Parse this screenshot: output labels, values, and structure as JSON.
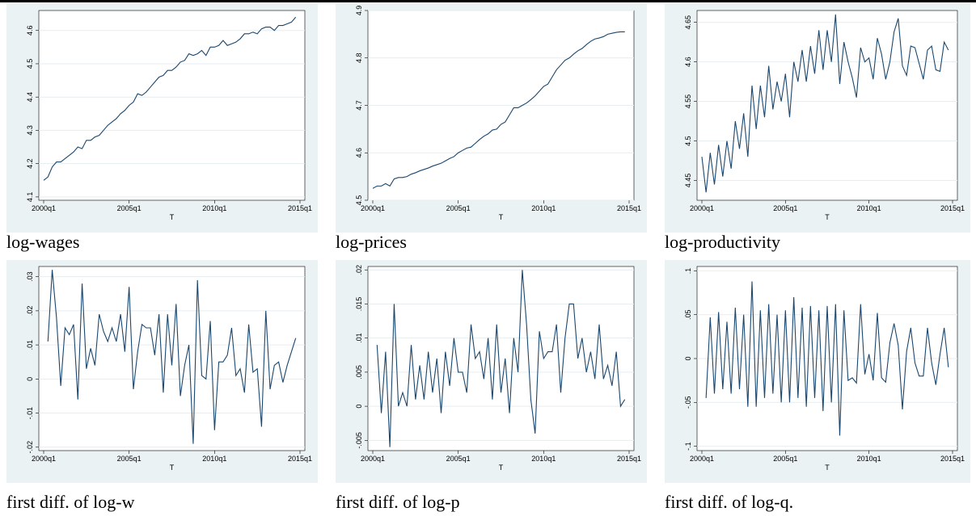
{
  "chart_data": [
    {
      "type": "line",
      "title": "log-wages",
      "xlabel": "T",
      "color": "#1a476f",
      "grid": true,
      "x": [
        "2000q1",
        "2000q2",
        "2000q3",
        "2000q4",
        "2001q1",
        "2001q2",
        "2001q3",
        "2001q4",
        "2002q1",
        "2002q2",
        "2002q3",
        "2002q4",
        "2003q1",
        "2003q2",
        "2003q3",
        "2003q4",
        "2004q1",
        "2004q2",
        "2004q3",
        "2004q4",
        "2005q1",
        "2005q2",
        "2005q3",
        "2005q4",
        "2006q1",
        "2006q2",
        "2006q3",
        "2006q4",
        "2007q1",
        "2007q2",
        "2007q3",
        "2007q4",
        "2008q1",
        "2008q2",
        "2008q3",
        "2008q4",
        "2009q1",
        "2009q2",
        "2009q3",
        "2009q4",
        "2010q1",
        "2010q2",
        "2010q3",
        "2010q4",
        "2011q1",
        "2011q2",
        "2011q3",
        "2011q4",
        "2012q1",
        "2012q2",
        "2012q3",
        "2012q4",
        "2013q1",
        "2013q2",
        "2013q3",
        "2013q4",
        "2014q1",
        "2014q2",
        "2014q3",
        "2014q4"
      ],
      "values": [
        4.15,
        4.16,
        4.19,
        4.205,
        4.205,
        4.215,
        4.225,
        4.235,
        4.25,
        4.245,
        4.27,
        4.27,
        4.28,
        4.285,
        4.3,
        4.315,
        4.325,
        4.335,
        4.35,
        4.36,
        4.375,
        4.385,
        4.41,
        4.405,
        4.415,
        4.43,
        4.445,
        4.46,
        4.465,
        4.48,
        4.48,
        4.49,
        4.505,
        4.51,
        4.53,
        4.525,
        4.53,
        4.54,
        4.525,
        4.55,
        4.55,
        4.555,
        4.57,
        4.555,
        4.56,
        4.565,
        4.575,
        4.59,
        4.59,
        4.595,
        4.59,
        4.605,
        4.61,
        4.61,
        4.6,
        4.615,
        4.615,
        4.62,
        4.625,
        4.64
      ],
      "xticks": [
        "2000q1",
        "2005q1",
        "2010q1",
        "2015q1"
      ],
      "ylim": [
        4.09,
        4.66
      ],
      "yticks": [
        4.1,
        4.2,
        4.3,
        4.4,
        4.5,
        4.6
      ]
    },
    {
      "type": "line",
      "title": "log-prices",
      "xlabel": "T",
      "color": "#1a476f",
      "grid": true,
      "x": [
        "2000q1",
        "2000q2",
        "2000q3",
        "2000q4",
        "2001q1",
        "2001q2",
        "2001q3",
        "2001q4",
        "2002q1",
        "2002q2",
        "2002q3",
        "2002q4",
        "2003q1",
        "2003q2",
        "2003q3",
        "2003q4",
        "2004q1",
        "2004q2",
        "2004q3",
        "2004q4",
        "2005q1",
        "2005q2",
        "2005q3",
        "2005q4",
        "2006q1",
        "2006q2",
        "2006q3",
        "2006q4",
        "2007q1",
        "2007q2",
        "2007q3",
        "2007q4",
        "2008q1",
        "2008q2",
        "2008q3",
        "2008q4",
        "2009q1",
        "2009q2",
        "2009q3",
        "2009q4",
        "2010q1",
        "2010q2",
        "2010q3",
        "2010q4",
        "2011q1",
        "2011q2",
        "2011q3",
        "2011q4",
        "2012q1",
        "2012q2",
        "2012q3",
        "2012q4",
        "2013q1",
        "2013q2",
        "2013q3",
        "2013q4",
        "2014q1",
        "2014q2",
        "2014q3",
        "2014q4"
      ],
      "values": [
        4.525,
        4.53,
        4.53,
        4.535,
        4.53,
        4.545,
        4.548,
        4.548,
        4.55,
        4.555,
        4.558,
        4.562,
        4.565,
        4.568,
        4.572,
        4.575,
        4.578,
        4.583,
        4.588,
        4.592,
        4.6,
        4.605,
        4.61,
        4.612,
        4.62,
        4.628,
        4.635,
        4.64,
        4.648,
        4.65,
        4.66,
        4.665,
        4.68,
        4.695,
        4.695,
        4.7,
        4.705,
        4.712,
        4.72,
        4.73,
        4.74,
        4.745,
        4.76,
        4.775,
        4.785,
        4.795,
        4.8,
        4.808,
        4.815,
        4.82,
        4.828,
        4.835,
        4.84,
        4.842,
        4.845,
        4.85,
        4.852,
        4.854,
        4.855,
        4.855
      ],
      "xticks": [
        "2000q1",
        "2005q1",
        "2010q1",
        "2015q1"
      ],
      "ylim": [
        4.5,
        4.9
      ],
      "yticks": [
        4.5,
        4.6,
        4.7,
        4.8,
        4.9
      ]
    },
    {
      "type": "line",
      "title": "log-productivity",
      "xlabel": "T",
      "color": "#1a476f",
      "grid": true,
      "x": [
        "2000q1",
        "2000q2",
        "2000q3",
        "2000q4",
        "2001q1",
        "2001q2",
        "2001q3",
        "2001q4",
        "2002q1",
        "2002q2",
        "2002q3",
        "2002q4",
        "2003q1",
        "2003q2",
        "2003q3",
        "2003q4",
        "2004q1",
        "2004q2",
        "2004q3",
        "2004q4",
        "2005q1",
        "2005q2",
        "2005q3",
        "2005q4",
        "2006q1",
        "2006q2",
        "2006q3",
        "2006q4",
        "2007q1",
        "2007q2",
        "2007q3",
        "2007q4",
        "2008q1",
        "2008q2",
        "2008q3",
        "2008q4",
        "2009q1",
        "2009q2",
        "2009q3",
        "2009q4",
        "2010q1",
        "2010q2",
        "2010q3",
        "2010q4",
        "2011q1",
        "2011q2",
        "2011q3",
        "2011q4",
        "2012q1",
        "2012q2",
        "2012q3",
        "2012q4",
        "2013q1",
        "2013q2",
        "2013q3",
        "2013q4",
        "2014q1",
        "2014q2",
        "2014q3",
        "2014q4"
      ],
      "values": [
        4.48,
        4.435,
        4.485,
        4.445,
        4.495,
        4.455,
        4.5,
        4.465,
        4.525,
        4.49,
        4.535,
        4.48,
        4.57,
        4.515,
        4.57,
        4.53,
        4.595,
        4.54,
        4.575,
        4.55,
        4.585,
        4.53,
        4.6,
        4.575,
        4.615,
        4.575,
        4.62,
        4.585,
        4.64,
        4.59,
        4.64,
        4.6,
        4.66,
        4.572,
        4.625,
        4.6,
        4.58,
        4.555,
        4.618,
        4.6,
        4.605,
        4.578,
        4.63,
        4.61,
        4.578,
        4.6,
        4.638,
        4.655,
        4.595,
        4.583,
        4.62,
        4.618,
        4.598,
        4.578,
        4.615,
        4.62,
        4.59,
        4.588,
        4.625,
        4.615
      ],
      "xticks": [
        "2000q1",
        "2005q1",
        "2010q1",
        "2015q1"
      ],
      "ylim": [
        4.425,
        4.665
      ],
      "yticks": [
        4.45,
        4.5,
        4.55,
        4.6,
        4.65
      ]
    },
    {
      "type": "line",
      "title": "first diff. of log-w",
      "xlabel": "T",
      "color": "#1a476f",
      "grid": true,
      "x": [
        "2000q2",
        "2000q3",
        "2000q4",
        "2001q1",
        "2001q2",
        "2001q3",
        "2001q4",
        "2002q1",
        "2002q2",
        "2002q3",
        "2002q4",
        "2003q1",
        "2003q2",
        "2003q3",
        "2003q4",
        "2004q1",
        "2004q2",
        "2004q3",
        "2004q4",
        "2005q1",
        "2005q2",
        "2005q3",
        "2005q4",
        "2006q1",
        "2006q2",
        "2006q3",
        "2006q4",
        "2007q1",
        "2007q2",
        "2007q3",
        "2007q4",
        "2008q1",
        "2008q2",
        "2008q3",
        "2008q4",
        "2009q1",
        "2009q2",
        "2009q3",
        "2009q4",
        "2010q1",
        "2010q2",
        "2010q3",
        "2010q4",
        "2011q1",
        "2011q2",
        "2011q3",
        "2011q4",
        "2012q1",
        "2012q2",
        "2012q3",
        "2012q4",
        "2013q1",
        "2013q2",
        "2013q3",
        "2013q4",
        "2014q1",
        "2014q2",
        "2014q3",
        "2014q4"
      ],
      "values": [
        0.011,
        0.032,
        0.018,
        -0.002,
        0.015,
        0.013,
        0.016,
        -0.006,
        0.028,
        0.003,
        0.009,
        0.004,
        0.019,
        0.014,
        0.011,
        0.015,
        0.011,
        0.019,
        0.008,
        0.027,
        -0.003,
        0.008,
        0.016,
        0.015,
        0.015,
        0.007,
        0.019,
        -0.004,
        0.019,
        0.004,
        0.022,
        -0.005,
        0.004,
        0.01,
        -0.019,
        0.029,
        0.001,
        0.0,
        0.017,
        -0.015,
        0.005,
        0.005,
        0.007,
        0.015,
        0.001,
        0.003,
        -0.004,
        0.016,
        0.002,
        0.003,
        -0.014,
        0.02,
        -0.003,
        0.004,
        0.005,
        -0.001,
        0.004,
        0.008,
        0.012
      ],
      "xticks": [
        "2000q1",
        "2005q1",
        "2010q1",
        "2015q1"
      ],
      "ylim": [
        -0.021,
        0.033
      ],
      "yticks": [
        {
          "value": -0.02,
          "label": "-.02"
        },
        {
          "value": -0.01,
          "label": "-.01"
        },
        0,
        {
          "value": 0.01,
          "label": ".01"
        },
        {
          "value": 0.02,
          "label": ".02"
        },
        {
          "value": 0.03,
          "label": ".03"
        }
      ]
    },
    {
      "type": "line",
      "title": "first diff. of log-p",
      "xlabel": "T",
      "color": "#1a476f",
      "grid": true,
      "x": [
        "2000q2",
        "2000q3",
        "2000q4",
        "2001q1",
        "2001q2",
        "2001q3",
        "2001q4",
        "2002q1",
        "2002q2",
        "2002q3",
        "2002q4",
        "2003q1",
        "2003q2",
        "2003q3",
        "2003q4",
        "2004q1",
        "2004q2",
        "2004q3",
        "2004q4",
        "2005q1",
        "2005q2",
        "2005q3",
        "2005q4",
        "2006q1",
        "2006q2",
        "2006q3",
        "2006q4",
        "2007q1",
        "2007q2",
        "2007q3",
        "2007q4",
        "2008q1",
        "2008q2",
        "2008q3",
        "2008q4",
        "2009q1",
        "2009q2",
        "2009q3",
        "2009q4",
        "2010q1",
        "2010q2",
        "2010q3",
        "2010q4",
        "2011q1",
        "2011q2",
        "2011q3",
        "2011q4",
        "2012q1",
        "2012q2",
        "2012q3",
        "2012q4",
        "2013q1",
        "2013q2",
        "2013q3",
        "2013q4",
        "2014q1",
        "2014q2",
        "2014q3",
        "2014q4"
      ],
      "values": [
        0.009,
        -0.001,
        0.008,
        -0.006,
        0.015,
        0.0,
        0.002,
        0.0,
        0.009,
        0.001,
        0.006,
        0.001,
        0.008,
        0.002,
        0.007,
        -0.001,
        0.008,
        0.003,
        0.01,
        0.005,
        0.005,
        0.002,
        0.012,
        0.007,
        0.008,
        0.004,
        0.01,
        0.001,
        0.012,
        0.002,
        0.007,
        -0.001,
        0.01,
        0.005,
        0.02,
        0.012,
        0.001,
        -0.004,
        0.011,
        0.007,
        0.008,
        0.008,
        0.012,
        0.002,
        0.01,
        0.015,
        0.015,
        0.007,
        0.01,
        0.005,
        0.008,
        0.004,
        0.012,
        0.004,
        0.006,
        0.003,
        0.008,
        0.0,
        0.001
      ],
      "xticks": [
        "2000q1",
        "2005q1",
        "2010q1",
        "2015q1"
      ],
      "ylim": [
        -0.0065,
        0.0205
      ],
      "yticks": [
        {
          "value": -0.005,
          "label": "-.005"
        },
        0,
        {
          "value": 0.005,
          "label": ".005"
        },
        {
          "value": 0.01,
          "label": ".01"
        },
        {
          "value": 0.015,
          "label": ".015"
        },
        {
          "value": 0.02,
          "label": ".02"
        }
      ]
    },
    {
      "type": "line",
      "title": "first diff. of log-q.",
      "xlabel": "T",
      "color": "#1a476f",
      "grid": true,
      "x": [
        "2000q2",
        "2000q3",
        "2000q4",
        "2001q1",
        "2001q2",
        "2001q3",
        "2001q4",
        "2002q1",
        "2002q2",
        "2002q3",
        "2002q4",
        "2003q1",
        "2003q2",
        "2003q3",
        "2003q4",
        "2004q1",
        "2004q2",
        "2004q3",
        "2004q4",
        "2005q1",
        "2005q2",
        "2005q3",
        "2005q4",
        "2006q1",
        "2006q2",
        "2006q3",
        "2006q4",
        "2007q1",
        "2007q2",
        "2007q3",
        "2007q4",
        "2008q1",
        "2008q2",
        "2008q3",
        "2008q4",
        "2009q1",
        "2009q2",
        "2009q3",
        "2009q4",
        "2010q1",
        "2010q2",
        "2010q3",
        "2010q4",
        "2011q1",
        "2011q2",
        "2011q3",
        "2011q4",
        "2012q1",
        "2012q2",
        "2012q3",
        "2012q4",
        "2013q1",
        "2013q2",
        "2013q3",
        "2013q4",
        "2014q1",
        "2014q2",
        "2014q3",
        "2014q4"
      ],
      "values": [
        -0.045,
        0.047,
        -0.04,
        0.053,
        -0.035,
        0.042,
        -0.04,
        0.058,
        -0.035,
        0.05,
        -0.055,
        0.088,
        -0.055,
        0.055,
        -0.045,
        0.062,
        -0.04,
        0.05,
        -0.05,
        0.055,
        -0.05,
        0.07,
        -0.045,
        0.058,
        -0.055,
        0.06,
        -0.045,
        0.055,
        -0.06,
        0.06,
        -0.05,
        0.062,
        -0.088,
        0.055,
        -0.025,
        -0.022,
        -0.028,
        0.062,
        -0.018,
        0.005,
        -0.025,
        0.052,
        -0.022,
        -0.027,
        0.018,
        0.04,
        0.015,
        -0.058,
        0.008,
        0.035,
        -0.005,
        -0.02,
        -0.02,
        0.035,
        -0.005,
        -0.03,
        0.005,
        0.035,
        -0.01
      ],
      "xticks": [
        "2000q1",
        "2005q1",
        "2010q1",
        "2015q1"
      ],
      "ylim": [
        -0.105,
        0.105
      ],
      "yticks": [
        {
          "value": -0.1,
          "label": "-.1"
        },
        {
          "value": -0.05,
          "label": "-.05"
        },
        0,
        {
          "value": 0.05,
          "label": ".05"
        },
        {
          "value": 0.1,
          "label": ".1"
        }
      ]
    }
  ]
}
